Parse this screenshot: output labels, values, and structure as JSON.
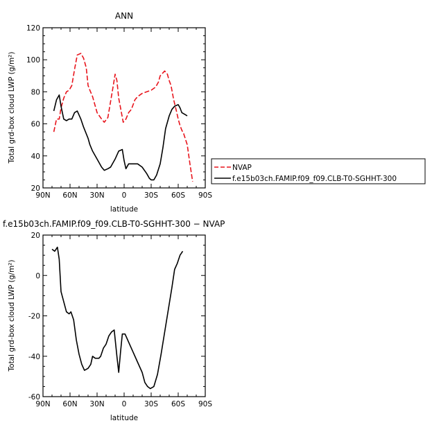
{
  "chart_data": [
    {
      "type": "line",
      "title": "ANN",
      "xlabel": "latitude",
      "ylabel": "Total grd-box cloud LWP (g/m²)",
      "xlim": [
        90,
        -90
      ],
      "ylim": [
        20,
        120
      ],
      "x_ticks": [
        {
          "v": 90,
          "label": "90N"
        },
        {
          "v": 60,
          "label": "60N"
        },
        {
          "v": 30,
          "label": "30N"
        },
        {
          "v": 0,
          "label": "0"
        },
        {
          "v": -30,
          "label": "30S"
        },
        {
          "v": -60,
          "label": "60S"
        },
        {
          "v": -90,
          "label": "90S"
        }
      ],
      "y_ticks": [
        20,
        40,
        60,
        80,
        100,
        120
      ],
      "legend": "outside-right",
      "series": [
        {
          "name": "NVAP",
          "color": "#e8141c",
          "dash": "dashed",
          "points": [
            [
              78,
              55
            ],
            [
              75,
              63
            ],
            [
              72,
              63
            ],
            [
              70,
              70
            ],
            [
              67,
              76
            ],
            [
              64,
              80
            ],
            [
              61,
              81
            ],
            [
              58,
              84
            ],
            [
              55,
              94
            ],
            [
              52,
              103
            ],
            [
              48,
              104
            ],
            [
              45,
              101
            ],
            [
              42,
              95
            ],
            [
              40,
              84
            ],
            [
              38,
              81
            ],
            [
              35,
              77
            ],
            [
              30,
              67
            ],
            [
              25,
              63
            ],
            [
              22,
              61
            ],
            [
              18,
              64
            ],
            [
              15,
              74
            ],
            [
              12,
              84
            ],
            [
              10,
              91
            ],
            [
              8,
              87
            ],
            [
              6,
              76
            ],
            [
              3,
              67
            ],
            [
              1,
              61
            ],
            [
              -2,
              63
            ],
            [
              -5,
              67
            ],
            [
              -8,
              69
            ],
            [
              -10,
              72
            ],
            [
              -12,
              75
            ],
            [
              -15,
              77
            ],
            [
              -20,
              79
            ],
            [
              -25,
              80
            ],
            [
              -30,
              81
            ],
            [
              -35,
              83
            ],
            [
              -38,
              86
            ],
            [
              -40,
              90
            ],
            [
              -45,
              93
            ],
            [
              -48,
              91
            ],
            [
              -50,
              87
            ],
            [
              -52,
              84
            ],
            [
              -55,
              75
            ],
            [
              -58,
              68
            ],
            [
              -60,
              63
            ],
            [
              -62,
              59
            ],
            [
              -64,
              56
            ],
            [
              -66,
              54
            ],
            [
              -70,
              47
            ],
            [
              -73,
              35
            ],
            [
              -76,
              24
            ]
          ]
        },
        {
          "name": "f.e15b03ch.FAMIP.f09_f09.CLB-T0-SGHHT-300",
          "color": "#000000",
          "dash": "solid",
          "points": [
            [
              78,
              68
            ],
            [
              75,
              75
            ],
            [
              72,
              78
            ],
            [
              70,
              71
            ],
            [
              67,
              63
            ],
            [
              64,
              62
            ],
            [
              61,
              63
            ],
            [
              58,
              63
            ],
            [
              55,
              67
            ],
            [
              52,
              68
            ],
            [
              48,
              63
            ],
            [
              45,
              58
            ],
            [
              40,
              51
            ],
            [
              38,
              47
            ],
            [
              35,
              43
            ],
            [
              30,
              38
            ],
            [
              25,
              33
            ],
            [
              22,
              31
            ],
            [
              18,
              32
            ],
            [
              15,
              33
            ],
            [
              10,
              38
            ],
            [
              6,
              43
            ],
            [
              2,
              44
            ],
            [
              0,
              37
            ],
            [
              -2,
              32
            ],
            [
              -5,
              35
            ],
            [
              -10,
              35
            ],
            [
              -15,
              35
            ],
            [
              -20,
              33
            ],
            [
              -25,
              29
            ],
            [
              -28,
              26
            ],
            [
              -30,
              25
            ],
            [
              -33,
              25
            ],
            [
              -36,
              28
            ],
            [
              -40,
              35
            ],
            [
              -43,
              45
            ],
            [
              -46,
              57
            ],
            [
              -50,
              65
            ],
            [
              -53,
              69
            ],
            [
              -56,
              71
            ],
            [
              -60,
              72
            ],
            [
              -62,
              70
            ],
            [
              -64,
              67
            ],
            [
              -67,
              66
            ],
            [
              -70,
              65
            ]
          ]
        }
      ]
    },
    {
      "type": "line",
      "title": "f.e15b03ch.FAMIP.f09_f09.CLB-T0-SGHHT-300 − NVAP",
      "xlabel": "latitude",
      "ylabel": "Total grd-box cloud LWP (g/m²)",
      "xlim": [
        90,
        -90
      ],
      "ylim": [
        -60,
        20
      ],
      "x_ticks": [
        {
          "v": 90,
          "label": "90N"
        },
        {
          "v": 60,
          "label": "60N"
        },
        {
          "v": 30,
          "label": "30N"
        },
        {
          "v": 0,
          "label": "0"
        },
        {
          "v": -30,
          "label": "30S"
        },
        {
          "v": -60,
          "label": "60S"
        },
        {
          "v": -90,
          "label": "90S"
        }
      ],
      "y_ticks": [
        -60,
        -40,
        -20,
        0,
        20
      ],
      "series": [
        {
          "color": "#000000",
          "dash": "solid",
          "points": [
            [
              80,
              13
            ],
            [
              77,
              12
            ],
            [
              74,
              14
            ],
            [
              72,
              8
            ],
            [
              70,
              -8
            ],
            [
              67,
              -13
            ],
            [
              64,
              -18
            ],
            [
              61,
              -19
            ],
            [
              59,
              -18
            ],
            [
              56,
              -22
            ],
            [
              53,
              -32
            ],
            [
              50,
              -39
            ],
            [
              47,
              -44
            ],
            [
              44,
              -47
            ],
            [
              40,
              -46
            ],
            [
              37,
              -44
            ],
            [
              35,
              -40
            ],
            [
              32,
              -41
            ],
            [
              28,
              -41
            ],
            [
              26,
              -40
            ],
            [
              23,
              -36
            ],
            [
              20,
              -34
            ],
            [
              17,
              -30
            ],
            [
              14,
              -28
            ],
            [
              11,
              -27
            ],
            [
              8,
              -40
            ],
            [
              6,
              -48
            ],
            [
              4,
              -38
            ],
            [
              2,
              -29
            ],
            [
              -1,
              -29
            ],
            [
              -3,
              -31
            ],
            [
              -6,
              -34
            ],
            [
              -10,
              -38
            ],
            [
              -15,
              -43
            ],
            [
              -20,
              -48
            ],
            [
              -23,
              -53
            ],
            [
              -26,
              -55
            ],
            [
              -29,
              -56
            ],
            [
              -33,
              -55
            ],
            [
              -37,
              -49
            ],
            [
              -41,
              -39
            ],
            [
              -45,
              -28
            ],
            [
              -49,
              -17
            ],
            [
              -53,
              -6
            ],
            [
              -56,
              3
            ],
            [
              -59,
              6
            ],
            [
              -62,
              10
            ],
            [
              -65,
              12
            ]
          ]
        }
      ]
    }
  ]
}
